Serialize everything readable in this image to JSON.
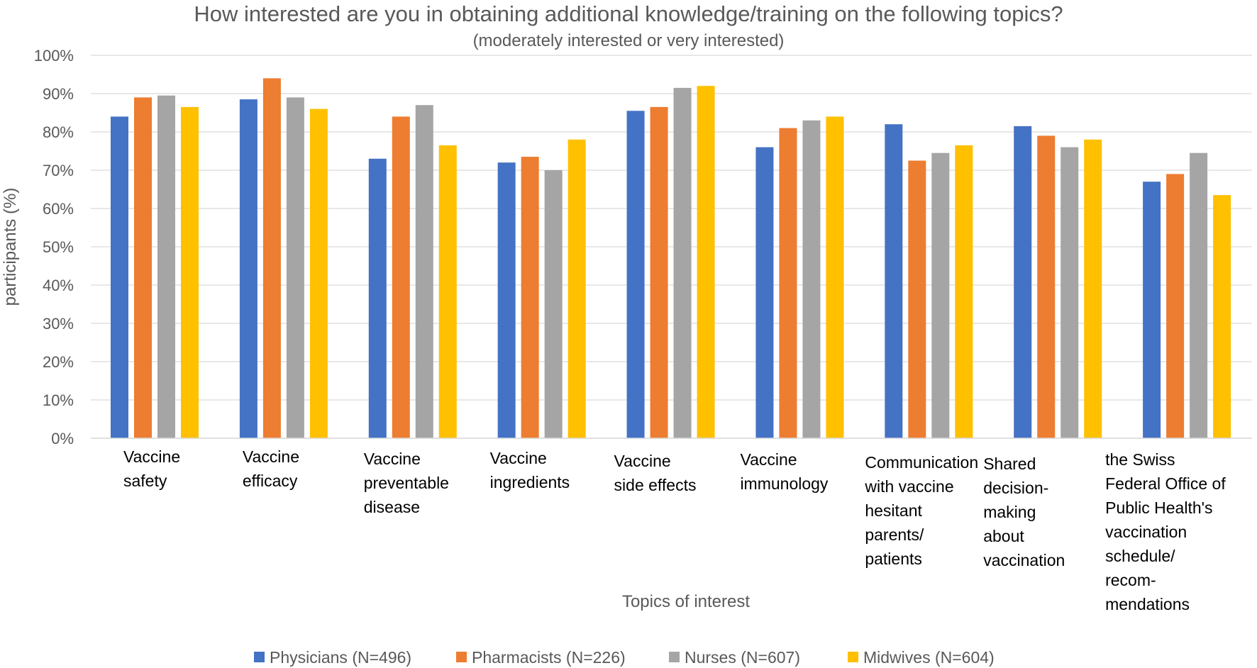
{
  "chart_data": {
    "type": "bar",
    "title": "How interested are you in obtaining additional knowledge/training on the following topics?",
    "subtitle": "(moderately interested or very interested)",
    "xlabel": "Topics of interest",
    "ylabel": "participants (%)",
    "ylim": [
      0,
      100
    ],
    "yticks": [
      0,
      10,
      20,
      30,
      40,
      50,
      60,
      70,
      80,
      90,
      100
    ],
    "ytick_labels": [
      "0%",
      "10%",
      "20%",
      "30%",
      "40%",
      "50%",
      "60%",
      "70%",
      "80%",
      "90%",
      "100%"
    ],
    "grid": true,
    "legend_position": "bottom",
    "categories": [
      "Vaccine safety",
      "Vaccine efficacy",
      "Vaccine preventable disease",
      "Vaccine ingredients",
      "Vaccine side effects",
      "Vaccine immunology",
      "Communication with vaccine hesitant parents/ patients",
      "Shared decision-making about vaccination",
      "the Swiss Federal Office of Public Health's vaccination schedule/ recom-mendations"
    ],
    "category_label_lines": [
      [
        "Vaccine",
        "safety"
      ],
      [
        "Vaccine",
        "efficacy"
      ],
      [
        "Vaccine",
        "preventable",
        "disease"
      ],
      [
        "Vaccine",
        "ingredients"
      ],
      [
        "Vaccine",
        "side effects"
      ],
      [
        "Vaccine",
        "immunology"
      ],
      [
        "Communication",
        "with vaccine",
        "hesitant",
        "parents/",
        "patients"
      ],
      [
        "Shared",
        "decision-",
        "making",
        "about",
        "vaccination"
      ],
      [
        "the Swiss",
        "Federal Office of",
        "Public Health's",
        "vaccination",
        "schedule/",
        "recom-",
        "mendations"
      ]
    ],
    "series": [
      {
        "name": "Physicians (N=496)",
        "color": "#4472c4",
        "values": [
          84,
          88.5,
          73,
          72,
          85.5,
          76,
          82,
          81.5,
          67
        ]
      },
      {
        "name": "Pharmacists (N=226)",
        "color": "#ed7d31",
        "values": [
          89,
          94,
          84,
          73.5,
          86.5,
          81,
          72.5,
          79,
          69
        ]
      },
      {
        "name": "Nurses (N=607)",
        "color": "#a5a5a5",
        "values": [
          89.5,
          89,
          87,
          70,
          91.5,
          83,
          74.5,
          76,
          74.5
        ]
      },
      {
        "name": "Midwives (N=604)",
        "color": "#ffc000",
        "values": [
          86.5,
          86,
          76.5,
          78,
          92,
          84,
          76.5,
          78,
          63.5
        ]
      }
    ]
  }
}
